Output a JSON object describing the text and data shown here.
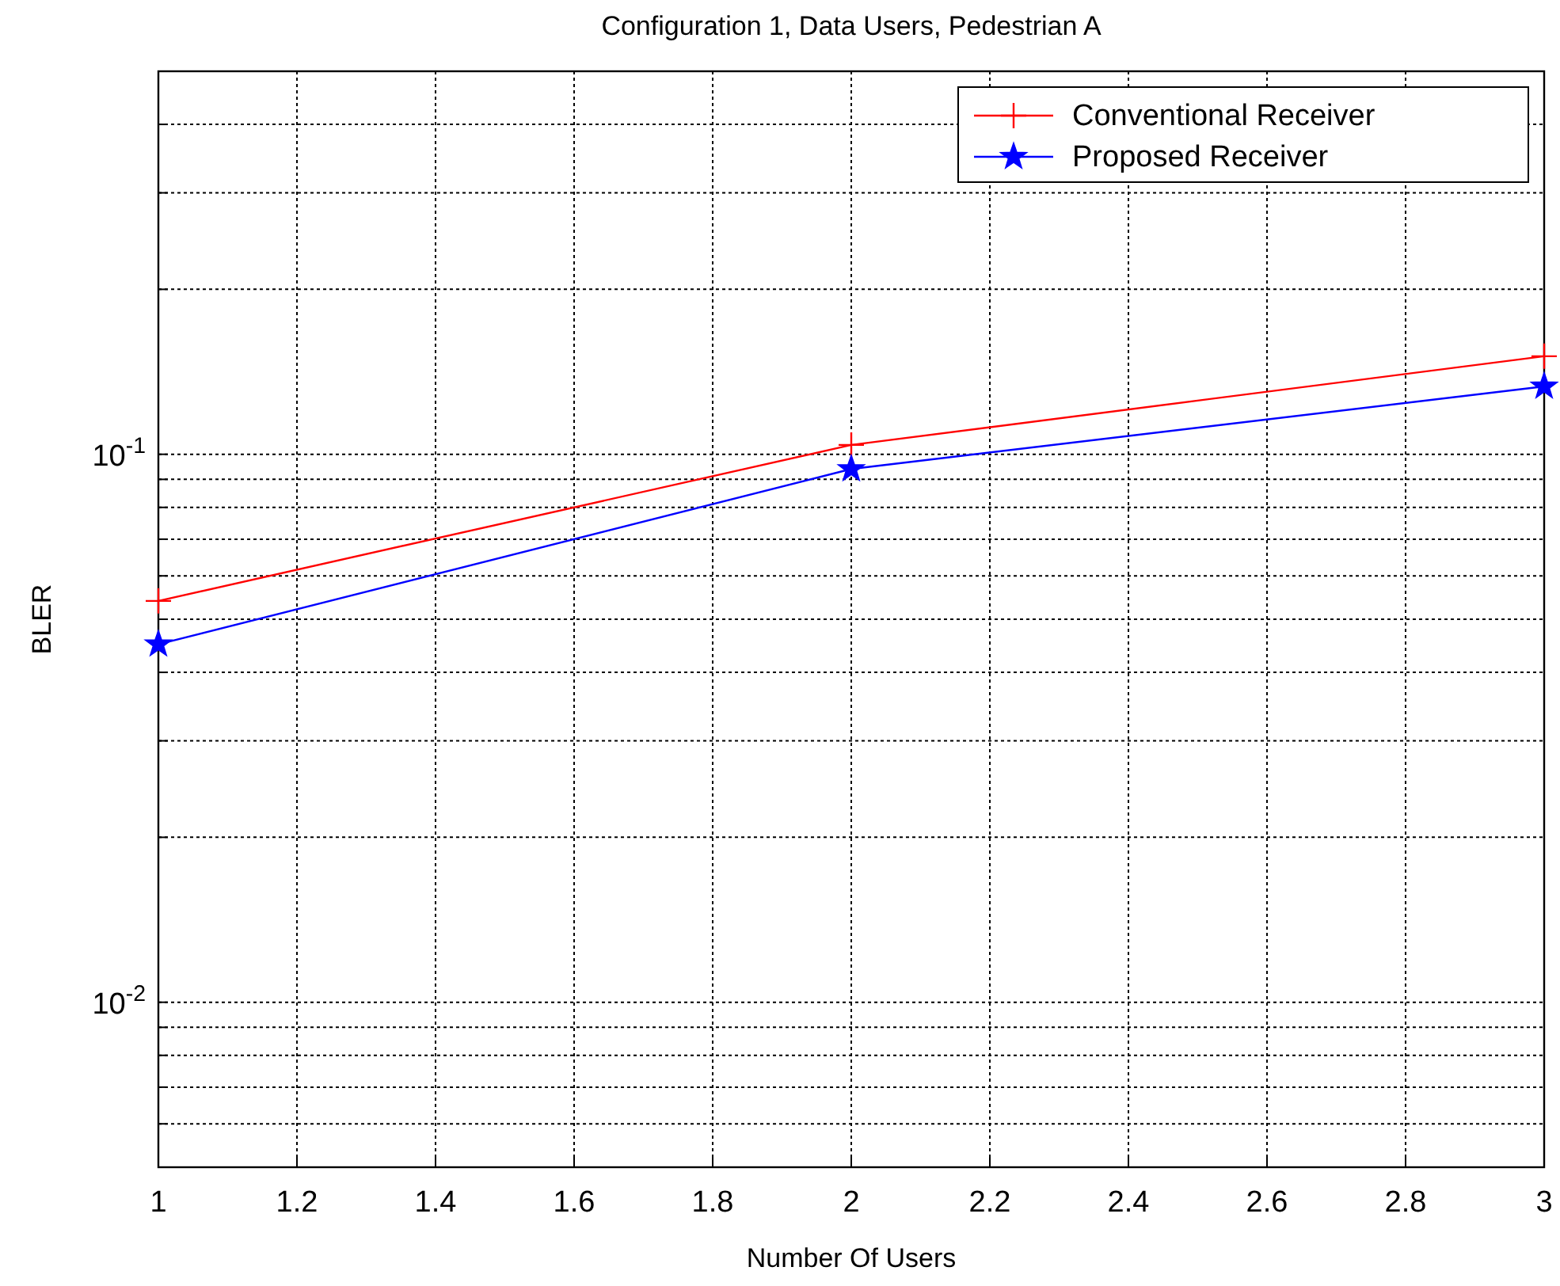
{
  "chart_data": {
    "type": "line",
    "title": "Configuration 1, Data Users, Pedestrian A",
    "xlabel": "Number Of Users",
    "ylabel": "BLER",
    "x": [
      1,
      2,
      3
    ],
    "series": [
      {
        "name": "Conventional Receiver",
        "color": "#ff0000",
        "values": [
          0.054,
          0.104,
          0.151
        ],
        "marker": "cross"
      },
      {
        "name": "Proposed Receiver",
        "color": "#0000ff",
        "values": [
          0.045,
          0.094,
          0.133
        ],
        "marker": "star"
      }
    ],
    "log": "y",
    "xlim": [
      1,
      3
    ],
    "xticks": [
      1,
      1.2,
      1.4,
      1.6,
      1.8,
      2,
      2.2,
      2.4,
      2.6,
      2.8,
      3
    ],
    "ylim": [
      0.005,
      0.5
    ],
    "yticks": [
      {
        "value": 0.006,
        "label": null
      },
      {
        "value": 0.007,
        "label": null
      },
      {
        "value": 0.008,
        "label": null
      },
      {
        "value": 0.009,
        "label": null
      },
      {
        "value": 0.01,
        "label": "10$^{-2}$"
      },
      {
        "value": 0.02,
        "label": null
      },
      {
        "value": 0.03,
        "label": null
      },
      {
        "value": 0.04,
        "label": null
      },
      {
        "value": 0.05,
        "label": null
      },
      {
        "value": 0.06,
        "label": null
      },
      {
        "value": 0.07,
        "label": null
      },
      {
        "value": 0.08,
        "label": null
      },
      {
        "value": 0.09,
        "label": null
      },
      {
        "value": 0.1,
        "label": "10$^{-1}$"
      },
      {
        "value": 0.2,
        "label": null
      },
      {
        "value": 0.3,
        "label": null
      },
      {
        "value": 0.4,
        "label": null
      },
      {
        "value": 0.5,
        "label": null
      }
    ],
    "grid": true,
    "legend": "top right",
    "line_style": "solid"
  }
}
